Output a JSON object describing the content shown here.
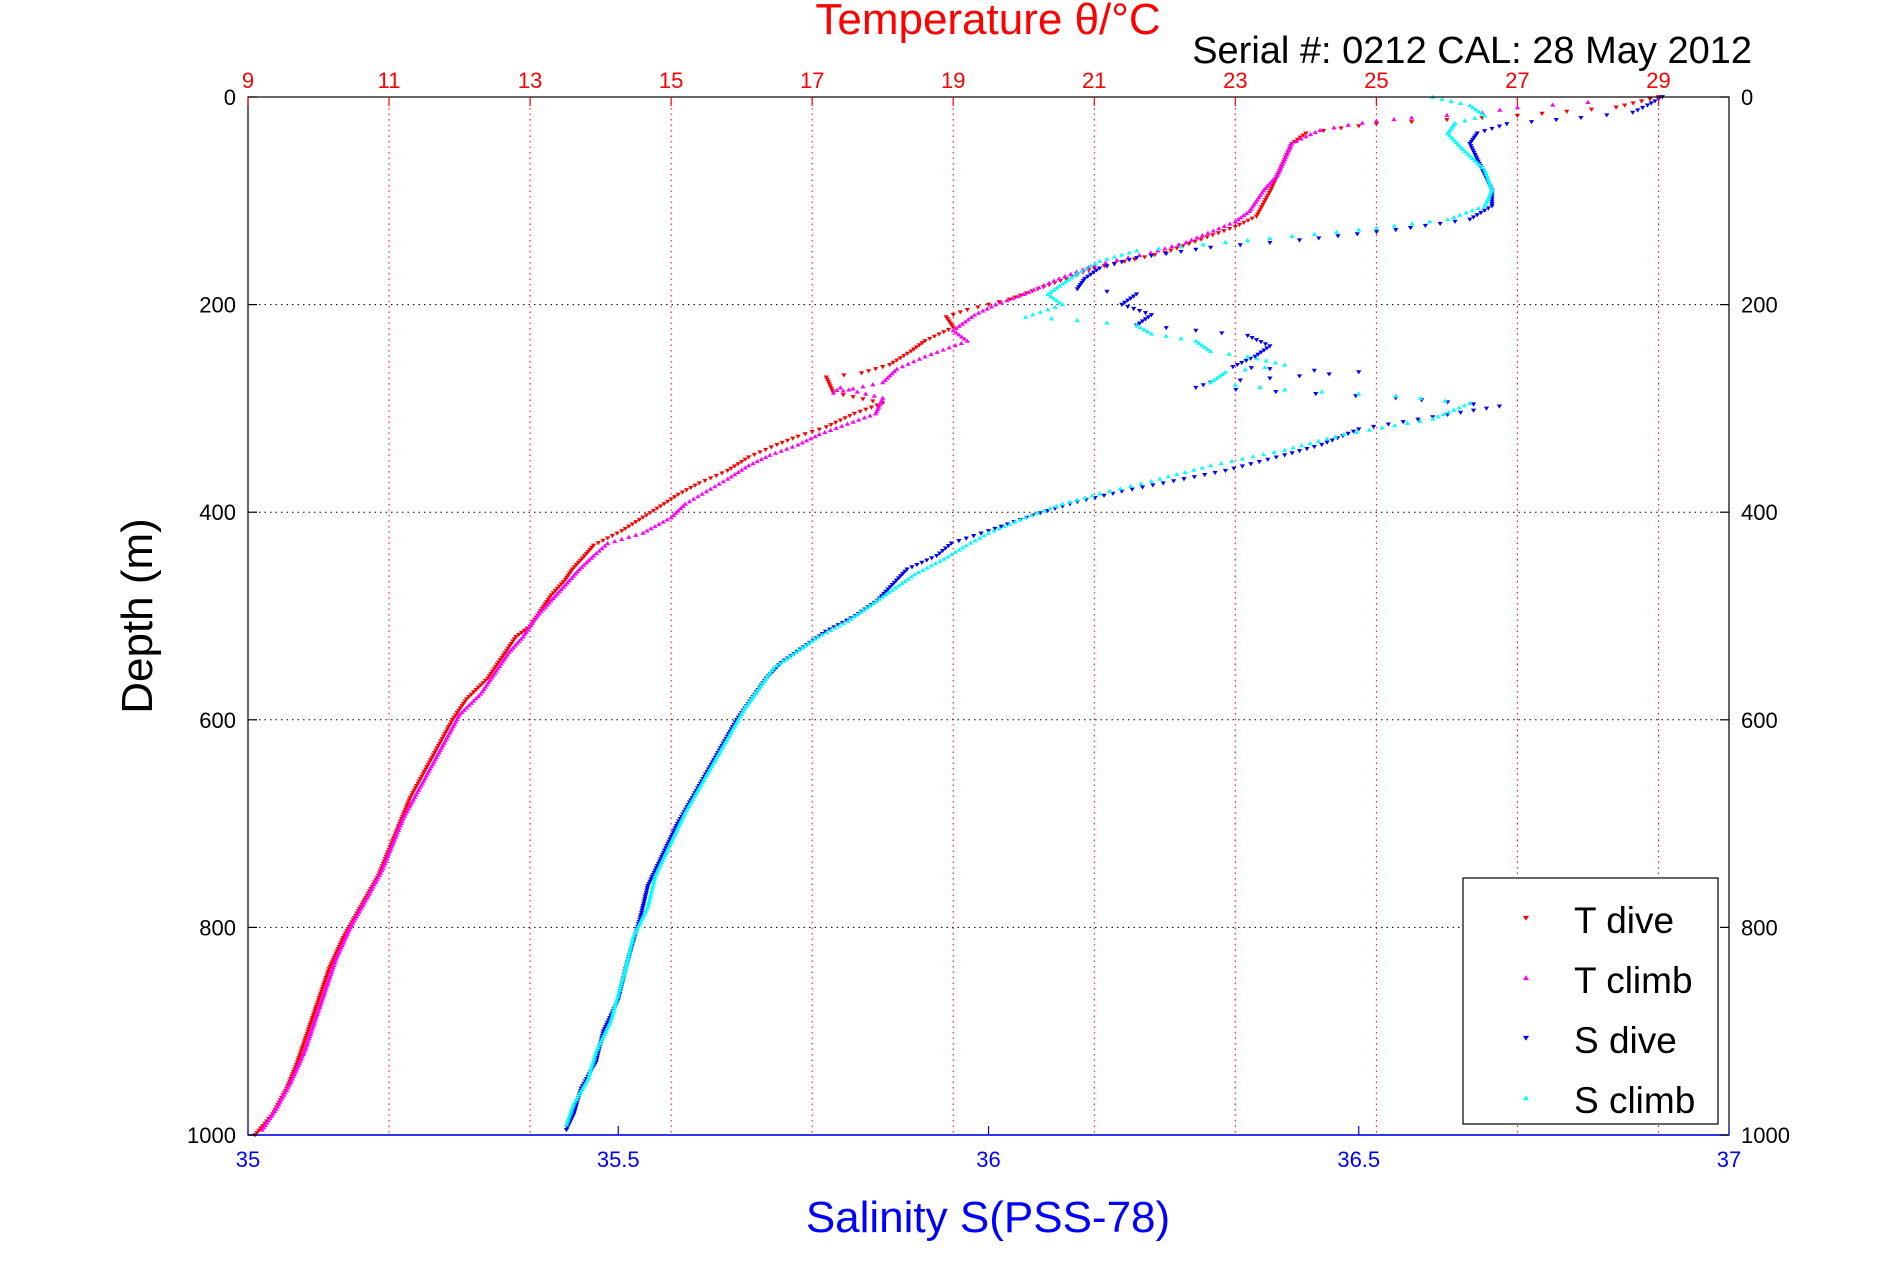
{
  "chart_data": {
    "type": "scatter",
    "title_top": "Temperature θ/°C",
    "serial_text": "Serial #: 0212  CAL: 28 May 2012",
    "xlabel": "Salinity S(PSS-78)",
    "ylabel": "Depth (m)",
    "temperature_axis": {
      "range": [
        9,
        30
      ],
      "ticks": [
        9,
        11,
        13,
        15,
        17,
        19,
        21,
        23,
        25,
        27,
        29
      ],
      "tick_labels": [
        "9",
        "11",
        "13",
        "15",
        "17",
        "19",
        "21",
        "23",
        "25",
        "27",
        "29"
      ]
    },
    "salinity_axis": {
      "range": [
        35,
        37
      ],
      "ticks": [
        35,
        35.5,
        36,
        36.5,
        37
      ],
      "tick_labels": [
        "35",
        "35.5",
        "36",
        "36.5",
        "37"
      ]
    },
    "depth_axis": {
      "range": [
        0,
        1000
      ],
      "reversed": true,
      "ticks": [
        0,
        200,
        400,
        600,
        800,
        1000
      ],
      "tick_labels": [
        "0",
        "200",
        "400",
        "600",
        "800",
        "1000"
      ]
    },
    "grid": true,
    "legend_position": "bottom-right",
    "series": [
      {
        "name": "T dive",
        "axis": "temperature",
        "color": "#ff0000",
        "marker": "triangle-down",
        "points": [
          [
            29.0,
            0
          ],
          [
            28.4,
            10
          ],
          [
            27.0,
            18
          ],
          [
            26.0,
            22
          ],
          [
            25.0,
            26
          ],
          [
            24.5,
            30
          ],
          [
            24.0,
            35
          ],
          [
            23.8,
            45
          ],
          [
            23.7,
            60
          ],
          [
            23.6,
            75
          ],
          [
            23.5,
            90
          ],
          [
            23.3,
            115
          ],
          [
            23.0,
            125
          ],
          [
            22.6,
            135
          ],
          [
            22.0,
            150
          ],
          [
            21.0,
            165
          ],
          [
            20.6,
            175
          ],
          [
            20.2,
            185
          ],
          [
            19.8,
            195
          ],
          [
            19.5,
            200
          ],
          [
            19.2,
            205
          ],
          [
            18.9,
            212
          ],
          [
            19.0,
            222
          ],
          [
            18.6,
            235
          ],
          [
            18.4,
            245
          ],
          [
            18.1,
            258
          ],
          [
            17.7,
            266
          ],
          [
            17.2,
            270
          ],
          [
            17.3,
            285
          ],
          [
            18.0,
            295
          ],
          [
            17.6,
            305
          ],
          [
            17.2,
            318
          ],
          [
            16.8,
            327
          ],
          [
            16.5,
            335
          ],
          [
            16.1,
            347
          ],
          [
            15.8,
            360
          ],
          [
            15.4,
            372
          ],
          [
            15.1,
            383
          ],
          [
            14.9,
            392
          ],
          [
            14.6,
            405
          ],
          [
            14.3,
            418
          ],
          [
            13.9,
            432
          ],
          [
            13.8,
            440
          ],
          [
            13.6,
            455
          ],
          [
            13.5,
            465
          ],
          [
            13.3,
            480
          ],
          [
            13.15,
            495
          ],
          [
            13.0,
            510
          ],
          [
            12.8,
            520
          ],
          [
            12.6,
            540
          ],
          [
            12.4,
            560
          ],
          [
            12.1,
            580
          ],
          [
            11.9,
            600
          ],
          [
            11.7,
            625
          ],
          [
            11.5,
            650
          ],
          [
            11.3,
            675
          ],
          [
            11.15,
            700
          ],
          [
            11.0,
            725
          ],
          [
            10.85,
            750
          ],
          [
            10.6,
            780
          ],
          [
            10.35,
            810
          ],
          [
            10.15,
            840
          ],
          [
            10.0,
            870
          ],
          [
            9.85,
            900
          ],
          [
            9.7,
            930
          ],
          [
            9.55,
            955
          ],
          [
            9.35,
            980
          ],
          [
            9.1,
            1000
          ]
        ]
      },
      {
        "name": "T climb",
        "axis": "temperature",
        "color": "#ff00ff",
        "marker": "triangle-up",
        "points": [
          [
            28.0,
            5
          ],
          [
            27.0,
            10
          ],
          [
            26.5,
            15
          ],
          [
            25.5,
            20
          ],
          [
            25.0,
            23
          ],
          [
            24.6,
            27
          ],
          [
            24.2,
            32
          ],
          [
            24.0,
            38
          ],
          [
            23.8,
            45
          ],
          [
            23.7,
            60
          ],
          [
            23.6,
            75
          ],
          [
            23.4,
            90
          ],
          [
            23.2,
            110
          ],
          [
            23.0,
            120
          ],
          [
            22.3,
            140
          ],
          [
            21.8,
            150
          ],
          [
            21.0,
            162
          ],
          [
            20.5,
            175
          ],
          [
            20.0,
            190
          ],
          [
            19.6,
            200
          ],
          [
            19.3,
            210
          ],
          [
            19.0,
            225
          ],
          [
            19.2,
            235
          ],
          [
            18.6,
            250
          ],
          [
            18.2,
            262
          ],
          [
            18.0,
            275
          ],
          [
            17.3,
            285
          ],
          [
            17.4,
            280
          ],
          [
            18.0,
            290
          ],
          [
            17.9,
            305
          ],
          [
            17.5,
            315
          ],
          [
            17.1,
            325
          ],
          [
            16.8,
            335
          ],
          [
            16.4,
            345
          ],
          [
            16.1,
            355
          ],
          [
            15.8,
            368
          ],
          [
            15.5,
            380
          ],
          [
            15.2,
            392
          ],
          [
            15.0,
            405
          ],
          [
            14.6,
            420
          ],
          [
            14.1,
            430
          ],
          [
            13.9,
            442
          ],
          [
            13.7,
            455
          ],
          [
            13.5,
            470
          ],
          [
            13.3,
            485
          ],
          [
            13.1,
            500
          ],
          [
            12.9,
            520
          ],
          [
            12.7,
            535
          ],
          [
            12.5,
            555
          ],
          [
            12.3,
            575
          ],
          [
            12.0,
            595
          ],
          [
            11.8,
            620
          ],
          [
            11.6,
            645
          ],
          [
            11.4,
            670
          ],
          [
            11.2,
            695
          ],
          [
            11.05,
            720
          ],
          [
            10.9,
            745
          ],
          [
            10.7,
            770
          ],
          [
            10.45,
            800
          ],
          [
            10.25,
            830
          ],
          [
            10.1,
            860
          ],
          [
            9.95,
            890
          ],
          [
            9.8,
            920
          ],
          [
            9.6,
            950
          ],
          [
            9.4,
            975
          ],
          [
            9.2,
            995
          ]
        ]
      },
      {
        "name": "S dive",
        "axis": "salinity",
        "color": "#0000ff",
        "marker": "triangle-down",
        "points": [
          [
            36.91,
            0
          ],
          [
            36.89,
            8
          ],
          [
            36.87,
            15
          ],
          [
            36.8,
            20
          ],
          [
            36.7,
            26
          ],
          [
            36.66,
            35
          ],
          [
            36.65,
            45
          ],
          [
            36.66,
            60
          ],
          [
            36.67,
            75
          ],
          [
            36.68,
            90
          ],
          [
            36.68,
            105
          ],
          [
            36.65,
            118
          ],
          [
            36.55,
            128
          ],
          [
            36.42,
            138
          ],
          [
            36.3,
            145
          ],
          [
            36.2,
            155
          ],
          [
            36.15,
            165
          ],
          [
            36.13,
            175
          ],
          [
            36.12,
            185
          ],
          [
            36.2,
            190
          ],
          [
            36.18,
            200
          ],
          [
            36.22,
            210
          ],
          [
            36.2,
            220
          ],
          [
            36.28,
            225
          ],
          [
            36.35,
            230
          ],
          [
            36.38,
            240
          ],
          [
            36.36,
            250
          ],
          [
            36.33,
            260
          ],
          [
            36.38,
            262
          ],
          [
            36.5,
            265
          ],
          [
            36.3,
            275
          ],
          [
            36.28,
            280
          ],
          [
            36.55,
            290
          ],
          [
            36.69,
            298
          ],
          [
            36.62,
            306
          ],
          [
            36.5,
            320
          ],
          [
            36.45,
            335
          ],
          [
            36.4,
            345
          ],
          [
            36.32,
            360
          ],
          [
            36.25,
            370
          ],
          [
            36.18,
            380
          ],
          [
            36.12,
            390
          ],
          [
            36.06,
            403
          ],
          [
            36.0,
            418
          ],
          [
            35.95,
            430
          ],
          [
            35.93,
            442
          ],
          [
            35.89,
            455
          ],
          [
            35.87,
            470
          ],
          [
            35.85,
            485
          ],
          [
            35.82,
            500
          ],
          [
            35.78,
            515
          ],
          [
            35.75,
            530
          ],
          [
            35.72,
            545
          ],
          [
            35.7,
            560
          ],
          [
            35.68,
            580
          ],
          [
            35.66,
            600
          ],
          [
            35.64,
            625
          ],
          [
            35.62,
            650
          ],
          [
            35.6,
            675
          ],
          [
            35.58,
            700
          ],
          [
            35.56,
            730
          ],
          [
            35.54,
            760
          ],
          [
            35.53,
            790
          ],
          [
            35.52,
            815
          ],
          [
            35.51,
            840
          ],
          [
            35.5,
            870
          ],
          [
            35.48,
            900
          ],
          [
            35.47,
            930
          ],
          [
            35.45,
            955
          ],
          [
            35.44,
            980
          ],
          [
            35.43,
            995
          ]
        ]
      },
      {
        "name": "S climb",
        "axis": "salinity",
        "color": "#00ffff",
        "marker": "triangle-up",
        "points": [
          [
            36.6,
            0
          ],
          [
            36.65,
            8
          ],
          [
            36.67,
            18
          ],
          [
            36.63,
            25
          ],
          [
            36.62,
            35
          ],
          [
            36.64,
            50
          ],
          [
            36.67,
            70
          ],
          [
            36.68,
            90
          ],
          [
            36.67,
            105
          ],
          [
            36.62,
            118
          ],
          [
            36.5,
            128
          ],
          [
            36.35,
            138
          ],
          [
            36.2,
            148
          ],
          [
            36.15,
            158
          ],
          [
            36.12,
            170
          ],
          [
            36.1,
            180
          ],
          [
            36.08,
            190
          ],
          [
            36.1,
            200
          ],
          [
            36.05,
            212
          ],
          [
            36.12,
            215
          ],
          [
            36.2,
            220
          ],
          [
            36.22,
            228
          ],
          [
            36.28,
            235
          ],
          [
            36.3,
            245
          ],
          [
            36.35,
            250
          ],
          [
            36.4,
            258
          ],
          [
            36.32,
            265
          ],
          [
            36.3,
            275
          ],
          [
            36.4,
            282
          ],
          [
            36.55,
            288
          ],
          [
            36.65,
            295
          ],
          [
            36.6,
            310
          ],
          [
            36.48,
            325
          ],
          [
            36.4,
            340
          ],
          [
            36.3,
            355
          ],
          [
            36.22,
            370
          ],
          [
            36.15,
            382
          ],
          [
            36.1,
            392
          ],
          [
            36.05,
            405
          ],
          [
            36.0,
            420
          ],
          [
            35.97,
            432
          ],
          [
            35.94,
            445
          ],
          [
            35.9,
            460
          ],
          [
            35.87,
            475
          ],
          [
            35.84,
            490
          ],
          [
            35.81,
            505
          ],
          [
            35.77,
            520
          ],
          [
            35.74,
            535
          ],
          [
            35.71,
            550
          ],
          [
            35.69,
            570
          ],
          [
            35.67,
            590
          ],
          [
            35.65,
            615
          ],
          [
            35.63,
            640
          ],
          [
            35.61,
            665
          ],
          [
            35.59,
            690
          ],
          [
            35.57,
            720
          ],
          [
            35.55,
            750
          ],
          [
            35.54,
            780
          ],
          [
            35.52,
            810
          ],
          [
            35.51,
            840
          ],
          [
            35.5,
            865
          ],
          [
            35.49,
            890
          ],
          [
            35.47,
            920
          ],
          [
            35.46,
            945
          ],
          [
            35.44,
            970
          ],
          [
            35.43,
            990
          ]
        ]
      }
    ]
  }
}
